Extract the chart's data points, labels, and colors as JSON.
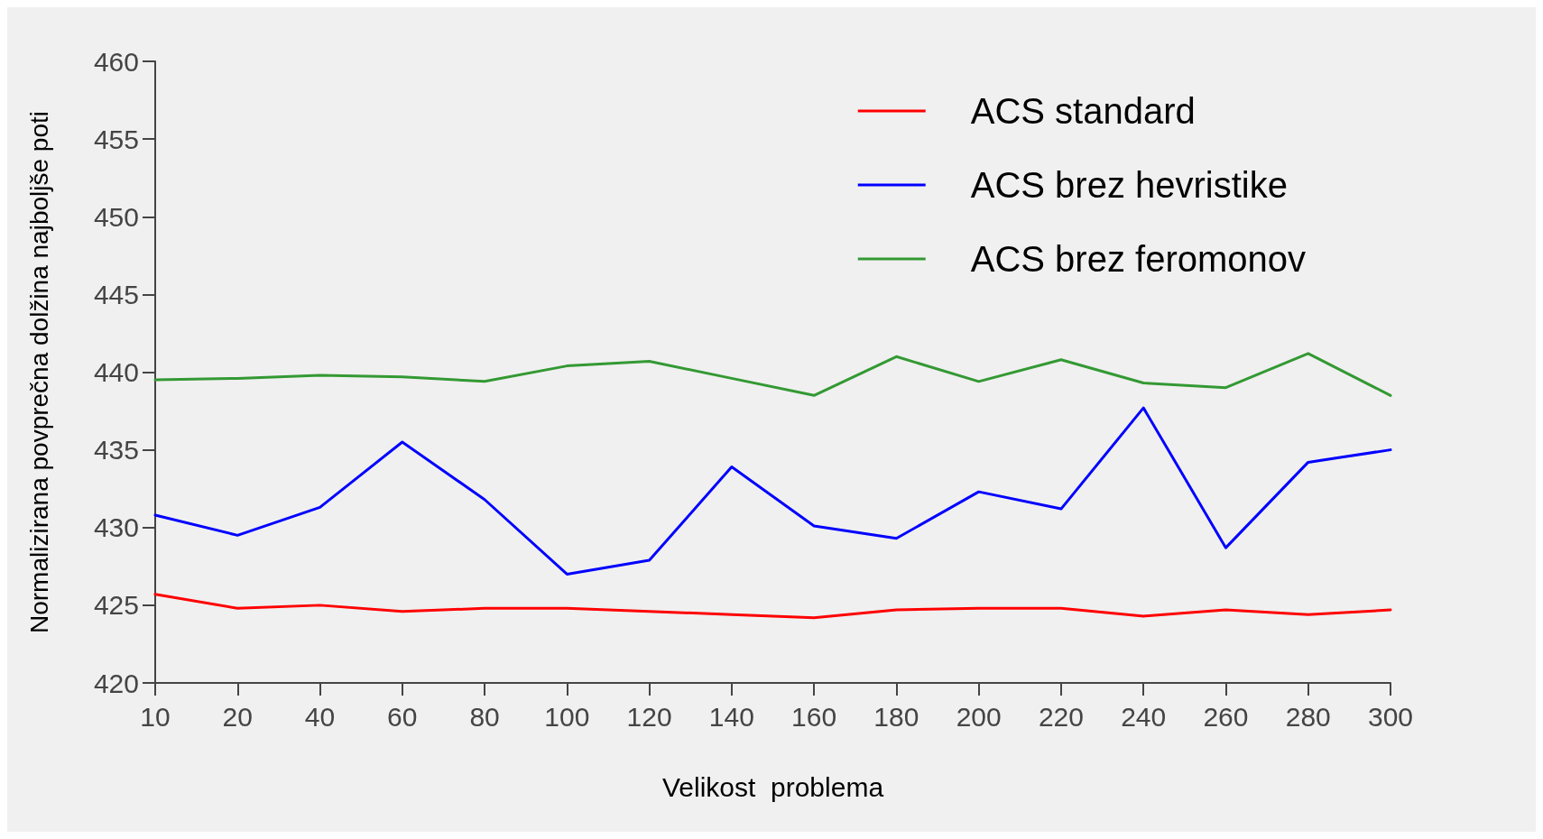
{
  "chart_data": {
    "type": "line",
    "xlabel": "Velikost  problema",
    "ylabel": "Normalizirana povprečna dolžina najboljše poti",
    "categories": [
      "10",
      "20",
      "40",
      "60",
      "80",
      "100",
      "120",
      "140",
      "160",
      "180",
      "200",
      "220",
      "240",
      "260",
      "280",
      "300"
    ],
    "ylim": [
      420,
      460
    ],
    "yticks": [
      420,
      425,
      430,
      435,
      440,
      445,
      450,
      455,
      460
    ],
    "grid": false,
    "legend": "top right",
    "marker": "none",
    "line_style": "solid",
    "series": [
      {
        "name": "ACS standard",
        "color": "#ff0000",
        "values": [
          425.7,
          424.8,
          425.0,
          424.6,
          424.8,
          424.8,
          424.6,
          424.4,
          424.2,
          424.7,
          424.8,
          424.8,
          424.3,
          424.7,
          424.4,
          424.7
        ]
      },
      {
        "name": "ACS brez hevristike",
        "color": "#0000ff",
        "values": [
          430.8,
          429.5,
          431.3,
          435.5,
          431.8,
          427.0,
          427.9,
          433.9,
          430.1,
          429.3,
          432.3,
          431.2,
          437.7,
          428.7,
          434.2,
          435.0
        ]
      },
      {
        "name": "ACS brez feromonov",
        "color": "#339933",
        "values": [
          439.5,
          439.6,
          439.8,
          439.7,
          439.4,
          440.4,
          440.7,
          439.6,
          438.5,
          441.0,
          439.4,
          440.8,
          439.3,
          439.0,
          441.2,
          438.5
        ]
      }
    ]
  }
}
